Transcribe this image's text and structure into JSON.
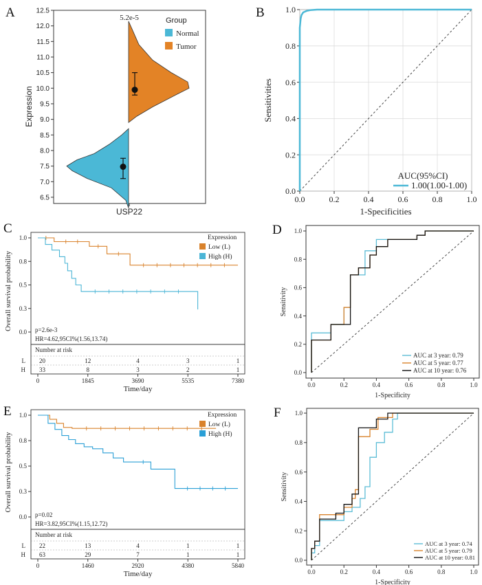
{
  "colors": {
    "normal": "#4bb8d6",
    "tumor": "#e38326",
    "low": "#d9822b",
    "high": "#4bb5d6",
    "black": "#111111",
    "auc3": "#5bbcd6",
    "auc5": "#d9822b",
    "auc10": "#111111"
  },
  "chart_data": [
    {
      "panel": "A",
      "type": "violin",
      "ylabel": "Expression",
      "xlabel": "USP22",
      "ylim": [
        6.3,
        12.5
      ],
      "yticks": [
        6.5,
        7.0,
        7.5,
        8.0,
        8.5,
        9.0,
        9.5,
        10.0,
        10.5,
        11.0,
        11.5,
        12.0,
        12.5
      ],
      "ytick_labels": [
        "6.5",
        "7.0",
        "7.5",
        "8.0",
        "8.5",
        "9.0",
        "9.5",
        "10.0",
        "10.5",
        "11.0",
        "11.5",
        "12.0",
        "12.5"
      ],
      "pvalue": "5.2e-5",
      "legend_title": "Group",
      "series": [
        {
          "name": "Normal",
          "mean": 7.48,
          "ci": [
            7.1,
            7.75
          ],
          "range": [
            6.15,
            8.7
          ]
        },
        {
          "name": "Tumor",
          "mean": 9.95,
          "ci": [
            9.78,
            10.5
          ],
          "range": [
            8.9,
            12.15
          ]
        }
      ]
    },
    {
      "panel": "B",
      "type": "line",
      "xlabel": "1-Specificities",
      "ylabel": "Sensitivities",
      "xlim": [
        0,
        1
      ],
      "ylim": [
        0,
        1
      ],
      "xtick_labels": [
        "0.0",
        "0.2",
        "0.4",
        "0.6",
        "0.8",
        "1.0"
      ],
      "ytick_labels": [
        "0.0",
        "0.2",
        "0.4",
        "0.6",
        "0.8",
        "1.0"
      ],
      "legend_title": "AUC(95%CI)",
      "series": [
        {
          "name": "1.00(1.00-1.00)",
          "x": [
            0,
            0,
            0.005,
            0.01,
            0.02,
            0.04,
            0.06,
            0.1,
            1
          ],
          "y": [
            0,
            0.9,
            0.95,
            0.97,
            0.985,
            0.993,
            0.997,
            1,
            1
          ]
        }
      ]
    },
    {
      "panel": "C",
      "type": "line",
      "xlabel": "Time/day",
      "ylabel": "Overall survival probability",
      "xlim": [
        0,
        7380
      ],
      "ylim": [
        0,
        1
      ],
      "xtick_labels": [
        "0",
        "1845",
        "3690",
        "5535",
        "7380"
      ],
      "ytick_labels": [
        "0.0",
        "0.3",
        "0.5",
        "0.8",
        "1.0"
      ],
      "legend_title": "Expression",
      "annotations": [
        "p=2.6e-3",
        "HR=4.62,95CI%(1.56,13.74)"
      ],
      "series": [
        {
          "name": "Low (L)",
          "x": [
            0,
            600,
            1900,
            2550,
            3400,
            7380
          ],
          "y": [
            1.0,
            0.96,
            0.91,
            0.83,
            0.71,
            0.71
          ]
        },
        {
          "name": "High (H)",
          "x": [
            0,
            280,
            520,
            800,
            1000,
            1100,
            1250,
            1400,
            1600,
            5700,
            5900
          ],
          "y": [
            1.0,
            0.93,
            0.87,
            0.8,
            0.73,
            0.65,
            0.57,
            0.5,
            0.43,
            0.43,
            0.24
          ]
        }
      ],
      "risk_table": {
        "title": "Number at risk",
        "rows": [
          {
            "label": "L",
            "values": [
              "20",
              "12",
              "4",
              "3",
              "1"
            ]
          },
          {
            "label": "H",
            "values": [
              "33",
              "8",
              "3",
              "2",
              "1"
            ]
          }
        ]
      }
    },
    {
      "panel": "D",
      "type": "line",
      "xlabel": "1-Specificity",
      "ylabel": "Sensitivity",
      "xlim": [
        0,
        1
      ],
      "ylim": [
        0,
        1
      ],
      "xtick_labels": [
        "0.0",
        "0.2",
        "0.4",
        "0.6",
        "0.8",
        "1.0"
      ],
      "ytick_labels": [
        "0.0",
        "0.2",
        "0.4",
        "0.6",
        "0.8",
        "1.0"
      ],
      "series": [
        {
          "name": "AUC at 3 year: 0.79",
          "x": [
            0,
            0,
            0.12,
            0.12,
            0.2,
            0.2,
            0.24,
            0.24,
            0.33,
            0.33,
            0.4,
            0.4,
            0.47,
            0.47,
            0.65,
            0.65,
            0.7,
            0.7,
            1
          ],
          "y": [
            0,
            0.28,
            0.28,
            0.34,
            0.34,
            0.46,
            0.46,
            0.69,
            0.69,
            0.86,
            0.86,
            0.94,
            0.94,
            0.94,
            0.94,
            0.97,
            0.97,
            1,
            1
          ]
        },
        {
          "name": "AUC at 5 year: 0.77",
          "x": [
            0,
            0,
            0.12,
            0.12,
            0.2,
            0.2,
            0.24,
            0.24,
            0.29,
            0.29,
            0.36,
            0.36,
            0.4,
            0.4,
            0.47,
            0.47,
            0.65,
            0.65,
            0.7,
            0.7,
            1
          ],
          "y": [
            0,
            0.23,
            0.23,
            0.34,
            0.34,
            0.46,
            0.46,
            0.69,
            0.69,
            0.74,
            0.74,
            0.83,
            0.83,
            0.89,
            0.89,
            0.94,
            0.94,
            0.97,
            0.97,
            1,
            1
          ]
        },
        {
          "name": "AUC at 10 year: 0.76",
          "x": [
            0,
            0,
            0.12,
            0.12,
            0.24,
            0.24,
            0.29,
            0.29,
            0.36,
            0.36,
            0.4,
            0.4,
            0.47,
            0.47,
            0.65,
            0.65,
            0.7,
            0.7,
            1
          ],
          "y": [
            0,
            0.23,
            0.23,
            0.34,
            0.34,
            0.69,
            0.69,
            0.74,
            0.74,
            0.83,
            0.83,
            0.89,
            0.89,
            0.94,
            0.94,
            0.97,
            0.97,
            1,
            1
          ]
        }
      ]
    },
    {
      "panel": "E",
      "type": "line",
      "xlabel": "Time/day",
      "ylabel": "Overall survival probability",
      "xlim": [
        0,
        5840
      ],
      "ylim": [
        0,
        1
      ],
      "xtick_labels": [
        "0",
        "1460",
        "2920",
        "4380",
        "5840"
      ],
      "ytick_labels": [
        "0.0",
        "0.3",
        "0.5",
        "0.8",
        "1.0"
      ],
      "legend_title": "Expression",
      "annotations": [
        "p=0.02",
        "HR=3.82,95CI%(1.15,12.72)"
      ],
      "series": [
        {
          "name": "Low (L)",
          "x": [
            0,
            350,
            550,
            750,
            1000,
            5200
          ],
          "y": [
            1.0,
            0.96,
            0.92,
            0.88,
            0.87,
            0.87
          ]
        },
        {
          "name": "High (H)",
          "x": [
            0,
            300,
            500,
            700,
            900,
            1100,
            1350,
            1600,
            1900,
            2200,
            2500,
            2850,
            3300,
            3600,
            4000,
            5840
          ],
          "y": [
            1.0,
            0.92,
            0.86,
            0.8,
            0.76,
            0.72,
            0.69,
            0.67,
            0.63,
            0.58,
            0.54,
            0.54,
            0.47,
            0.47,
            0.28,
            0.28
          ]
        }
      ],
      "risk_table": {
        "title": "Number at risk",
        "rows": [
          {
            "label": "L",
            "values": [
              "22",
              "13",
              "4",
              "1",
              "1"
            ]
          },
          {
            "label": "H",
            "values": [
              "63",
              "29",
              "7",
              "1",
              "1"
            ]
          }
        ]
      }
    },
    {
      "panel": "F",
      "type": "line",
      "xlabel": "1-Specificity",
      "ylabel": "Sensitivity",
      "xlim": [
        0,
        1
      ],
      "ylim": [
        0,
        1
      ],
      "xtick_labels": [
        "0.0",
        "0.2",
        "0.4",
        "0.6",
        "0.8",
        "1.0"
      ],
      "ytick_labels": [
        "0.0",
        "0.2",
        "0.4",
        "0.6",
        "0.8",
        "1.0"
      ],
      "series": [
        {
          "name": "AUC at 3 year: 0.74",
          "x": [
            0,
            0,
            0.02,
            0.02,
            0.05,
            0.05,
            0.1,
            0.15,
            0.2,
            0.2,
            0.25,
            0.25,
            0.3,
            0.3,
            0.33,
            0.33,
            0.36,
            0.36,
            0.4,
            0.4,
            0.45,
            0.45,
            0.5,
            0.5,
            0.53,
            0.53,
            1
          ],
          "y": [
            0,
            0.05,
            0.05,
            0.1,
            0.1,
            0.27,
            0.27,
            0.27,
            0.27,
            0.33,
            0.33,
            0.36,
            0.36,
            0.42,
            0.42,
            0.5,
            0.5,
            0.7,
            0.7,
            0.8,
            0.8,
            0.87,
            0.87,
            0.96,
            0.96,
            1,
            1
          ]
        },
        {
          "name": "AUC at 5 year: 0.79",
          "x": [
            0,
            0,
            0.02,
            0.02,
            0.05,
            0.05,
            0.2,
            0.2,
            0.25,
            0.25,
            0.27,
            0.27,
            0.29,
            0.29,
            0.36,
            0.36,
            0.41,
            0.41,
            0.5,
            0.5,
            1
          ],
          "y": [
            0,
            0.08,
            0.08,
            0.13,
            0.13,
            0.31,
            0.31,
            0.36,
            0.36,
            0.42,
            0.42,
            0.48,
            0.48,
            0.84,
            0.84,
            0.89,
            0.89,
            0.97,
            0.97,
            1,
            1
          ]
        },
        {
          "name": "AUC at 10 year: 0.81",
          "x": [
            0,
            0,
            0.02,
            0.02,
            0.05,
            0.05,
            0.15,
            0.15,
            0.2,
            0.2,
            0.25,
            0.25,
            0.29,
            0.29,
            0.4,
            0.4,
            0.47,
            0.47,
            1
          ],
          "y": [
            0,
            0.08,
            0.08,
            0.13,
            0.13,
            0.28,
            0.28,
            0.32,
            0.32,
            0.38,
            0.38,
            0.45,
            0.45,
            0.9,
            0.9,
            0.96,
            0.96,
            1,
            1
          ]
        }
      ]
    }
  ]
}
